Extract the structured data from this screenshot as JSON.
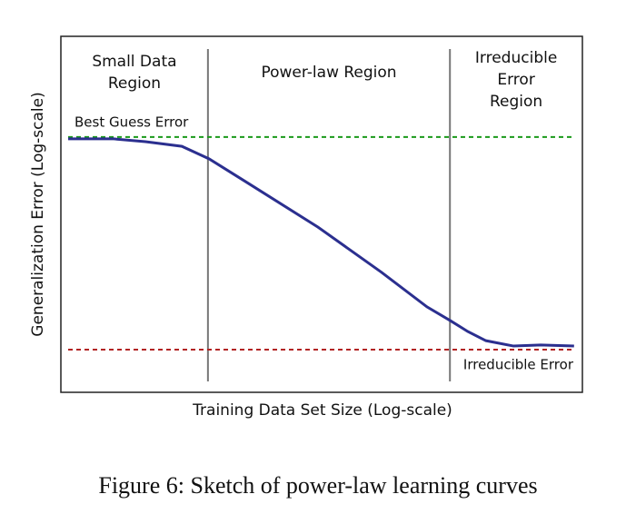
{
  "chart_data": {
    "type": "line",
    "caption": "Figure 6: Sketch of power-law learning curves",
    "x_label": "Training Data Set Size (Log-scale)",
    "y_label": "Generalization Error (Log-scale)",
    "xlim": [
      0,
      100
    ],
    "ylim": [
      0,
      100
    ],
    "x": [
      1.4,
      10.1,
      16.2,
      23.2,
      28.4,
      35.4,
      49.3,
      61.5,
      70.2,
      74.6,
      78.0,
      81.5,
      86.8,
      92.0,
      98.4
    ],
    "series": [
      {
        "color": "#2b2f8f",
        "values": [
          71.2,
          71.2,
          70.4,
          69.1,
          65.6,
          59.2,
          46.4,
          33.7,
          24.0,
          20.2,
          17.1,
          14.5,
          13.0,
          13.3,
          13.0
        ]
      }
    ],
    "hlines": [
      {
        "name": "Best Guess Error",
        "value": 71.7,
        "color": "#1a9a1a"
      },
      {
        "name": "Irreducible Error",
        "value": 12.0,
        "color": "#b22222"
      }
    ],
    "vlines": [
      {
        "value": 28.2,
        "color": "#777777"
      },
      {
        "value": 74.6,
        "color": "#777777"
      }
    ],
    "regions": [
      {
        "lines": [
          "Small Data",
          "Region"
        ]
      },
      {
        "lines": [
          "Power-law Region"
        ]
      },
      {
        "lines": [
          "Irreducible",
          "Error",
          "Region"
        ]
      }
    ]
  }
}
